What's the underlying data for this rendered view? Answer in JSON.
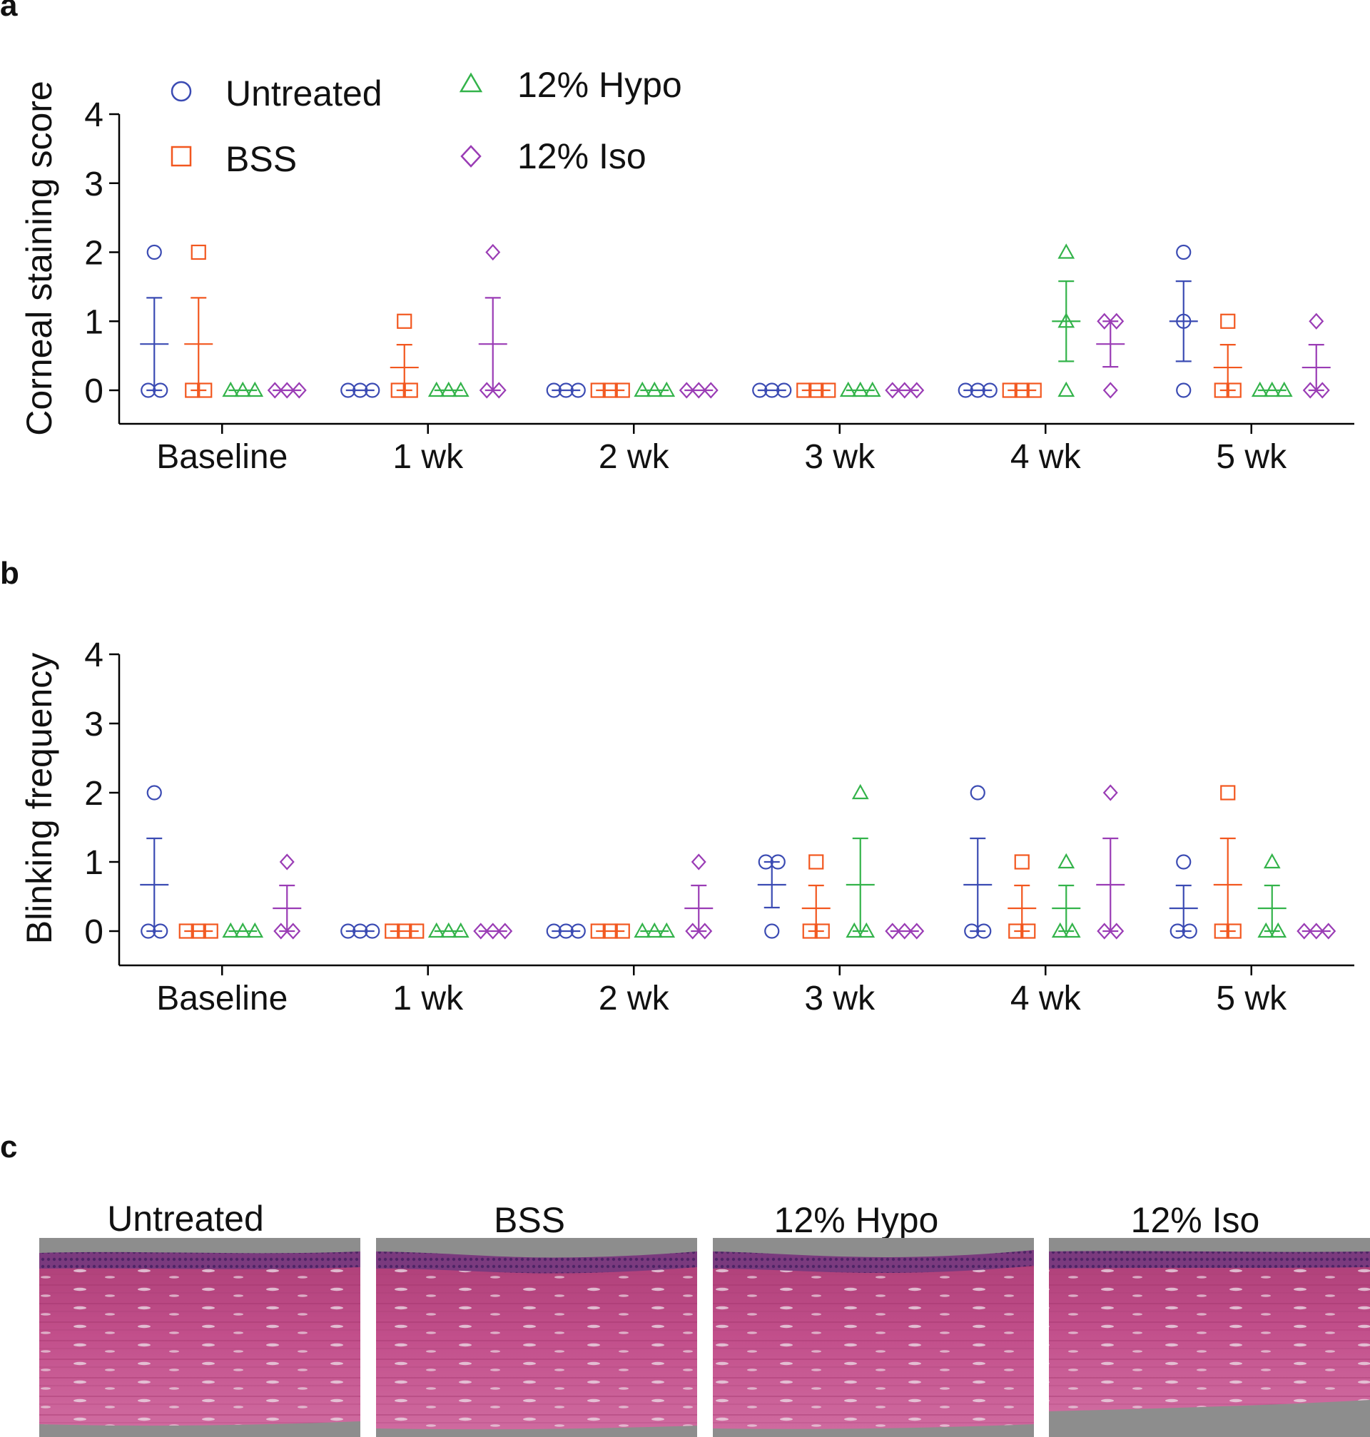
{
  "figure": {
    "panel_labels": [
      "a",
      "b",
      "c"
    ],
    "colors": {
      "untreated": "#3b4bb3",
      "bss": "#f2571f",
      "hypo": "#33b34a",
      "iso": "#9a3cb5"
    }
  },
  "legend": {
    "items": [
      {
        "label": "Untreated",
        "marker": "circle",
        "color": "#3b4bb3"
      },
      {
        "label": "BSS",
        "marker": "square",
        "color": "#f2571f"
      },
      {
        "label": "12% Hypo",
        "marker": "triangle",
        "color": "#33b34a"
      },
      {
        "label": "12% Iso",
        "marker": "diamond",
        "color": "#9a3cb5"
      }
    ]
  },
  "chart_data": [
    {
      "type": "scatter",
      "panel": "a",
      "ylabel": "Corneal staining score",
      "xlabel": "",
      "ylim": [
        0,
        4
      ],
      "yticks": [
        0,
        1,
        2,
        3,
        4
      ],
      "categories": [
        "Baseline",
        "1 wk",
        "2 wk",
        "3 wk",
        "4 wk",
        "5 wk"
      ],
      "series": [
        {
          "name": "Untreated",
          "points": [
            [
              0,
              0,
              2
            ],
            [
              0,
              0,
              0
            ],
            [
              0,
              0,
              0
            ],
            [
              0,
              0,
              0
            ],
            [
              0,
              0,
              0
            ],
            [
              0,
              1,
              2
            ]
          ],
          "mean": [
            0.67,
            0,
            0,
            0,
            0,
            1
          ],
          "sem": [
            0.67,
            0,
            0,
            0,
            0,
            0.58
          ]
        },
        {
          "name": "BSS",
          "points": [
            [
              0,
              0,
              2
            ],
            [
              0,
              0,
              1
            ],
            [
              0,
              0,
              0
            ],
            [
              0,
              0,
              0
            ],
            [
              0,
              0,
              0
            ],
            [
              0,
              0,
              1
            ]
          ],
          "mean": [
            0.67,
            0.33,
            0,
            0,
            0,
            0.33
          ],
          "sem": [
            0.67,
            0.33,
            0,
            0,
            0,
            0.33
          ]
        },
        {
          "name": "12% Hypo",
          "points": [
            [
              0,
              0,
              0
            ],
            [
              0,
              0,
              0
            ],
            [
              0,
              0,
              0
            ],
            [
              0,
              0,
              0
            ],
            [
              0,
              1,
              2
            ],
            [
              0,
              0,
              0
            ]
          ],
          "mean": [
            0,
            0,
            0,
            0,
            1,
            0
          ],
          "sem": [
            0,
            0,
            0,
            0,
            0.58,
            0
          ]
        },
        {
          "name": "12% Iso",
          "points": [
            [
              0,
              0,
              0
            ],
            [
              0,
              0,
              2
            ],
            [
              0,
              0,
              0
            ],
            [
              0,
              0,
              0
            ],
            [
              0,
              1,
              1
            ],
            [
              0,
              0,
              1
            ]
          ],
          "mean": [
            0,
            0.67,
            0,
            0,
            0.67,
            0.33
          ],
          "sem": [
            0,
            0.67,
            0,
            0,
            0.33,
            0.33
          ]
        }
      ]
    },
    {
      "type": "scatter",
      "panel": "b",
      "ylabel": "Blinking frequency",
      "xlabel": "",
      "ylim": [
        0,
        4
      ],
      "yticks": [
        0,
        1,
        2,
        3,
        4
      ],
      "categories": [
        "Baseline",
        "1 wk",
        "2 wk",
        "3 wk",
        "4 wk",
        "5 wk"
      ],
      "series": [
        {
          "name": "Untreated",
          "points": [
            [
              0,
              0,
              2
            ],
            [
              0,
              0,
              0
            ],
            [
              0,
              0,
              0
            ],
            [
              0,
              1,
              1
            ],
            [
              0,
              0,
              2
            ],
            [
              0,
              0,
              1
            ]
          ],
          "mean": [
            0.67,
            0,
            0,
            0.67,
            0.67,
            0.33
          ],
          "sem": [
            0.67,
            0,
            0,
            0.33,
            0.67,
            0.33
          ]
        },
        {
          "name": "BSS",
          "points": [
            [
              0,
              0,
              0
            ],
            [
              0,
              0,
              0
            ],
            [
              0,
              0,
              0
            ],
            [
              0,
              0,
              1
            ],
            [
              0,
              0,
              1
            ],
            [
              0,
              0,
              2
            ]
          ],
          "mean": [
            0,
            0,
            0,
            0.33,
            0.33,
            0.67
          ],
          "sem": [
            0,
            0,
            0,
            0.33,
            0.33,
            0.67
          ]
        },
        {
          "name": "12% Hypo",
          "points": [
            [
              0,
              0,
              0
            ],
            [
              0,
              0,
              0
            ],
            [
              0,
              0,
              0
            ],
            [
              0,
              0,
              2
            ],
            [
              0,
              0,
              1
            ],
            [
              0,
              0,
              1
            ]
          ],
          "mean": [
            0,
            0,
            0,
            0.67,
            0.33,
            0.33
          ],
          "sem": [
            0,
            0,
            0,
            0.67,
            0.33,
            0.33
          ]
        },
        {
          "name": "12% Iso",
          "points": [
            [
              0,
              0,
              1
            ],
            [
              0,
              0,
              0
            ],
            [
              0,
              0,
              1
            ],
            [
              0,
              0,
              0
            ],
            [
              0,
              0,
              2
            ],
            [
              0,
              0,
              0
            ]
          ],
          "mean": [
            0.33,
            0,
            0.33,
            0,
            0.67,
            0
          ],
          "sem": [
            0.33,
            0,
            0.33,
            0,
            0.67,
            0
          ]
        }
      ]
    }
  ],
  "histology": {
    "titles": [
      "Untreated",
      "BSS",
      "12% Hypo",
      "12% Iso"
    ]
  }
}
